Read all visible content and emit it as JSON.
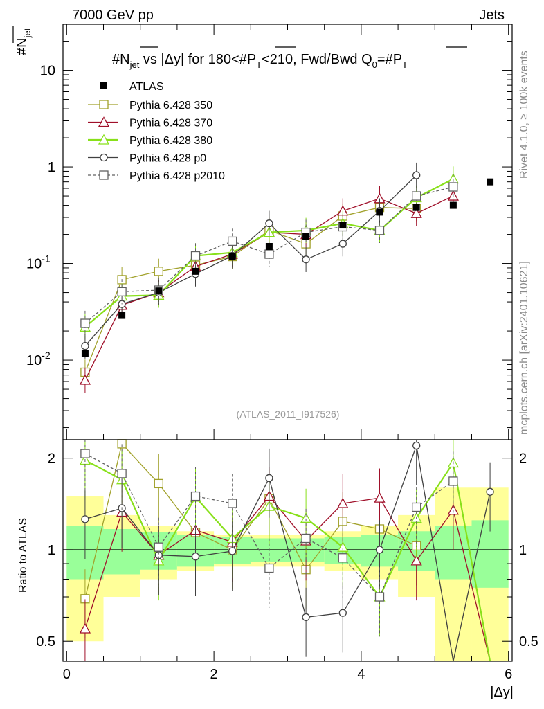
{
  "header": {
    "left": "7000 GeV pp",
    "right": "Jets"
  },
  "side_text": {
    "rivet": "Rivet 4.1.0, ≥ 100k events",
    "mcplots": "mcplots.cern.ch [arXiv:2401.10621]"
  },
  "chart_data": {
    "type": "scatter",
    "title": "#N_jet vs |Δy| for 180<#P_T<210, Fwd/Bwd Q_0=#P_T",
    "title_parts": {
      "a": "#N",
      "a_sub": "jet",
      "b": " vs |Δy|  for 180<#",
      "c": "P",
      "c_sub": "T",
      "d": "<210, Fwd/Bwd Q",
      "d_sub": "0",
      "e": "=#",
      "f": "P",
      "f_sub": "T"
    },
    "ylabel": {
      "main": "#N",
      "sub": "jet"
    },
    "xlabel": "|Δy|",
    "ratio_ylabel": "Ratio to ATLAS",
    "watermark": "(ATLAS_2011_I917526)",
    "yscale": "log",
    "ylim": [
      0.0015,
      30
    ],
    "xlim": [
      -0.05,
      6.05
    ],
    "ratio_ylim": [
      0.43,
      2.3
    ],
    "x_ticks": [
      "0",
      "2",
      "4",
      "6"
    ],
    "y_ticks": [
      {
        "v": 0.01,
        "base": "10",
        "exp": "-2"
      },
      {
        "v": 0.1,
        "base": "10",
        "exp": "-1"
      },
      {
        "v": 1,
        "base": "1",
        "exp": ""
      },
      {
        "v": 10,
        "base": "10",
        "exp": ""
      }
    ],
    "ratio_ticks": [
      "0.5",
      "1",
      "2"
    ],
    "x": [
      0.25,
      0.75,
      1.25,
      1.75,
      2.25,
      2.75,
      3.25,
      3.75,
      4.25,
      4.75,
      5.25,
      5.75
    ],
    "atlas": {
      "name": "ATLAS",
      "values": [
        0.0118,
        0.029,
        0.052,
        0.083,
        0.118,
        0.15,
        0.19,
        0.25,
        0.34,
        0.38,
        0.4,
        0.7
      ]
    },
    "bands": {
      "inner": [
        0.2,
        0.17,
        0.14,
        0.12,
        0.1,
        0.09,
        0.09,
        0.1,
        0.12,
        0.15,
        0.2,
        0.25
      ],
      "outer": [
        0.5,
        0.3,
        0.2,
        0.15,
        0.12,
        0.12,
        0.12,
        0.15,
        0.2,
        0.3,
        0.6,
        0.6
      ]
    },
    "series": [
      {
        "name": "Pythia 6.428 350",
        "color": "#a1a12a",
        "marker": "square-open",
        "dash": "",
        "values": [
          0.0075,
          0.068,
          0.083,
          0.096,
          0.118,
          0.22,
          0.16,
          0.31,
          0.38,
          0.37,
          null,
          null
        ],
        "ratio": [
          0.69,
          2.23,
          1.65,
          1.14,
          1.0,
          1.47,
          0.86,
          1.24,
          1.17,
          1.03,
          null,
          null
        ]
      },
      {
        "name": "Pythia 6.428 370",
        "color": "#a0102a",
        "marker": "triangle-open",
        "dash": "",
        "values": [
          0.0062,
          0.037,
          0.05,
          0.093,
          0.125,
          0.21,
          0.2,
          0.35,
          0.47,
          0.33,
          0.5,
          null
        ],
        "ratio": [
          0.55,
          1.33,
          0.96,
          1.16,
          1.06,
          1.5,
          1.07,
          1.42,
          1.48,
          0.92,
          1.35,
          0.3
        ]
      },
      {
        "name": "Pythia 6.428 380",
        "color": "#88e01a",
        "marker": "triangle-open",
        "dash": "",
        "values": [
          0.022,
          0.046,
          0.047,
          0.12,
          0.13,
          0.21,
          0.22,
          0.26,
          0.22,
          0.48,
          0.75,
          null
        ],
        "ratio": [
          1.97,
          1.7,
          0.92,
          1.49,
          1.09,
          1.39,
          1.27,
          1.02,
          0.7,
          1.27,
          1.93,
          0.3
        ]
      },
      {
        "name": "Pythia 6.428 p0",
        "color": "#404040",
        "marker": "circle-open",
        "dash": "",
        "values": [
          0.014,
          0.038,
          0.05,
          0.078,
          0.12,
          0.26,
          0.11,
          0.16,
          0.35,
          0.82,
          null,
          null
        ],
        "ratio": [
          1.26,
          1.37,
          0.96,
          0.95,
          0.99,
          1.72,
          0.6,
          0.62,
          1.0,
          2.2,
          0.3,
          1.55
        ]
      },
      {
        "name": "Pythia 6.428 p2010",
        "color": "#606060",
        "marker": "square-open",
        "dash": "4,3",
        "values": [
          0.024,
          0.051,
          0.053,
          0.12,
          0.17,
          0.125,
          0.21,
          0.24,
          0.22,
          0.5,
          0.62,
          null
        ],
        "ratio": [
          2.07,
          1.78,
          1.02,
          1.5,
          1.42,
          0.87,
          1.09,
          0.94,
          0.7,
          1.38,
          1.68,
          null
        ]
      }
    ]
  }
}
